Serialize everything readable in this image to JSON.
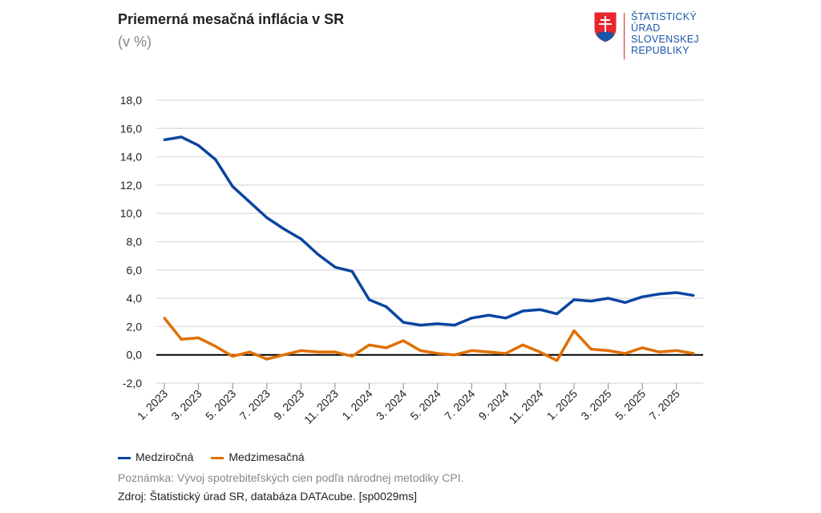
{
  "header": {
    "title": "Priemerná mesačná inflácia v SR",
    "subtitle": "(v %)"
  },
  "logo": {
    "lines": [
      "ŠTATISTICKÝ",
      "ÚRAD",
      "SLOVENSKEJ",
      "REPUBLIKY"
    ]
  },
  "chart_data": {
    "type": "line",
    "title": "Priemerná mesačná inflácia v SR",
    "subtitle": "(v %)",
    "ylim": [
      -2,
      18
    ],
    "yticks": [
      "-2,0",
      "0,0",
      "2,0",
      "4,0",
      "6,0",
      "8,0",
      "10,0",
      "12,0",
      "14,0",
      "16,0",
      "18,0"
    ],
    "xtick_labels": [
      "1. 2023",
      "3. 2023",
      "5. 2023",
      "7. 2023",
      "9. 2023",
      "11. 2023",
      "1. 2024",
      "3. 2024",
      "5. 2024",
      "7. 2024",
      "9. 2024",
      "11. 2024",
      "1. 2025",
      "3. 2025",
      "5. 2025",
      "7. 2025"
    ],
    "x": [
      "1.2023",
      "2.2023",
      "3.2023",
      "4.2023",
      "5.2023",
      "6.2023",
      "7.2023",
      "8.2023",
      "9.2023",
      "10.2023",
      "11.2023",
      "12.2023",
      "1.2024",
      "2.2024",
      "3.2024",
      "4.2024",
      "5.2024",
      "6.2024",
      "7.2024",
      "8.2024",
      "9.2024",
      "10.2024",
      "11.2024",
      "12.2024",
      "1.2025",
      "2.2025",
      "3.2025",
      "4.2025",
      "5.2025",
      "6.2025",
      "7.2025",
      "8.2025"
    ],
    "grid": true,
    "legend_position": "bottom-left",
    "series": [
      {
        "name": "Medziročná",
        "color": "#0b45a0",
        "values": [
          15.2,
          15.4,
          14.8,
          13.8,
          11.9,
          10.8,
          9.7,
          8.9,
          8.2,
          7.1,
          6.2,
          5.9,
          3.9,
          3.4,
          2.3,
          2.1,
          2.2,
          2.1,
          2.6,
          2.8,
          2.6,
          3.1,
          3.2,
          2.9,
          3.9,
          3.8,
          4.0,
          3.7,
          4.1,
          4.3,
          4.4,
          4.2
        ]
      },
      {
        "name": "Medzimesačná",
        "color": "#e07000",
        "values": [
          2.6,
          1.1,
          1.2,
          0.6,
          -0.1,
          0.2,
          -0.3,
          0.0,
          0.3,
          0.2,
          0.2,
          -0.1,
          0.7,
          0.5,
          1.0,
          0.3,
          0.1,
          0.0,
          0.3,
          0.2,
          0.1,
          0.7,
          0.2,
          -0.4,
          1.7,
          0.4,
          0.3,
          0.1,
          0.5,
          0.2,
          0.3,
          0.1
        ]
      }
    ]
  },
  "footer": {
    "note": "Poznámka: Vývoj spotrebiteľských cien podľa národnej metodiky CPI.",
    "source": "Zdroj: Štatistický úrad SR, databáza DATAcube. [sp0029ms]"
  }
}
